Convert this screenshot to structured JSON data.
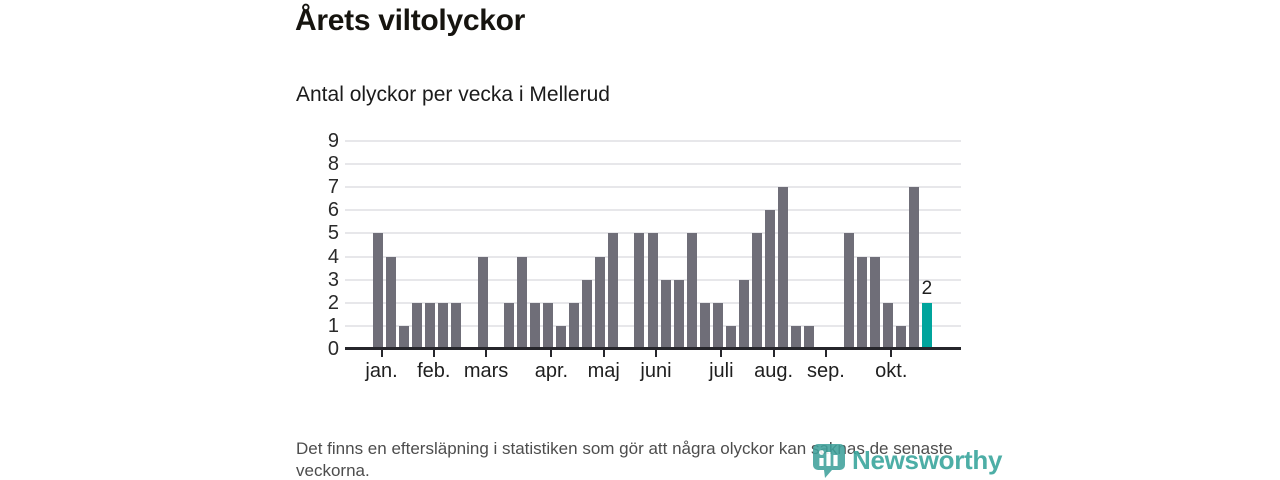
{
  "chart_data": {
    "type": "bar",
    "title": "Årets viltolyckor",
    "subtitle": "Antal olyckor per vecka i Mellerud",
    "xlabel": "",
    "ylabel": "",
    "ylim": [
      0,
      9
    ],
    "yticks": [
      0,
      1,
      2,
      3,
      4,
      5,
      6,
      7,
      8,
      9
    ],
    "grid": "horizontal",
    "legend": "none",
    "x_unit": "vecka",
    "weekly_values": [
      5,
      4,
      1,
      2,
      2,
      2,
      2,
      0,
      4,
      0,
      2,
      4,
      2,
      2,
      1,
      2,
      3,
      4,
      5,
      0,
      5,
      5,
      3,
      3,
      5,
      2,
      2,
      1,
      3,
      5,
      6,
      7,
      1,
      1,
      0,
      0,
      5,
      4,
      4,
      2,
      1,
      7,
      2
    ],
    "month_ticks": [
      {
        "label": "jan.",
        "week_index": 0
      },
      {
        "label": "feb.",
        "week_index": 4
      },
      {
        "label": "mars",
        "week_index": 8
      },
      {
        "label": "apr.",
        "week_index": 13
      },
      {
        "label": "maj",
        "week_index": 17
      },
      {
        "label": "juni",
        "week_index": 21
      },
      {
        "label": "juli",
        "week_index": 26
      },
      {
        "label": "aug.",
        "week_index": 30
      },
      {
        "label": "sep.",
        "week_index": 34
      },
      {
        "label": "okt.",
        "week_index": 39
      }
    ],
    "highlight": {
      "index": 42,
      "label": "2",
      "color": "#00a49c"
    },
    "bar_color": "#6f6e78",
    "gridline_color": "#e7e7ea",
    "baseline_color": "#26262b"
  },
  "footer": {
    "note": "Det finns en eftersläpning i statistiken som gör att några olyckor kan saknas de senaste veckorna."
  },
  "branding": {
    "logo_text": "Newsworthy",
    "logo_color": "#35a39a",
    "logo_icon": "newsworthy-bubble-barchart-icon"
  }
}
